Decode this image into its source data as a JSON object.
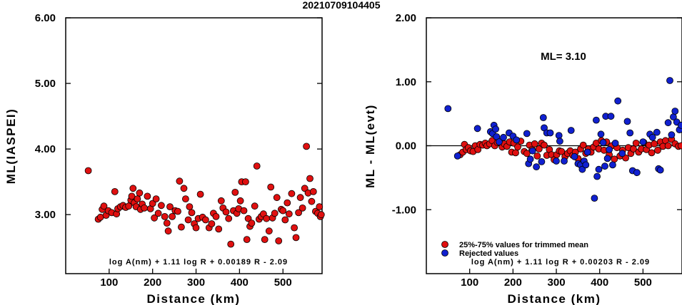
{
  "title": "20210709104405",
  "colors": {
    "used": "#e01010",
    "rejected": "#1020d0",
    "outline": "#000000"
  },
  "chart_data": [
    {
      "type": "scatter",
      "xlabel": "Distance (km)",
      "ylabel": "ML(IASPEI)",
      "xlim": [
        0,
        590
      ],
      "ylim": [
        2.1,
        6.0
      ],
      "xticks": [
        100,
        200,
        300,
        400,
        500
      ],
      "yticks": [
        3.0,
        4.0,
        5.0,
        6.0
      ],
      "ytick_labels": [
        "3.00",
        "4.00",
        "5.00",
        "6.00"
      ],
      "formula": "log A(nm) + 1.11 log R + 0.00189 R - 2.09",
      "series": [
        {
          "color": "#e01010",
          "points": [
            [
              52,
              3.67
            ],
            [
              75,
              2.93
            ],
            [
              80,
              2.96
            ],
            [
              84,
              3.08
            ],
            [
              88,
              3.13
            ],
            [
              93,
              2.99
            ],
            [
              98,
              3.06
            ],
            [
              106,
              3.03
            ],
            [
              113,
              3.35
            ],
            [
              117,
              3.01
            ],
            [
              120,
              3.09
            ],
            [
              126,
              3.12
            ],
            [
              132,
              3.14
            ],
            [
              138,
              3.11
            ],
            [
              145,
              3.13
            ],
            [
              150,
              3.22
            ],
            [
              152,
              3.28
            ],
            [
              155,
              3.4
            ],
            [
              158,
              3.18
            ],
            [
              162,
              3.12
            ],
            [
              165,
              3.24
            ],
            [
              170,
              3.33
            ],
            [
              172,
              3.08
            ],
            [
              176,
              3.16
            ],
            [
              181,
              3.1
            ],
            [
              188,
              3.28
            ],
            [
              195,
              3.09
            ],
            [
              200,
              3.17
            ],
            [
              204,
              2.95
            ],
            [
              208,
              3.24
            ],
            [
              213,
              3.02
            ],
            [
              220,
              3.14
            ],
            [
              228,
              2.97
            ],
            [
              233,
              2.87
            ],
            [
              236,
              2.75
            ],
            [
              240,
              3.12
            ],
            [
              245,
              2.97
            ],
            [
              252,
              3.06
            ],
            [
              258,
              3.05
            ],
            [
              262,
              3.51
            ],
            [
              266,
              2.81
            ],
            [
              272,
              3.4
            ],
            [
              276,
              3.24
            ],
            [
              282,
              2.92
            ],
            [
              285,
              3.12
            ],
            [
              290,
              3.03
            ],
            [
              296,
              2.86
            ],
            [
              300,
              2.8
            ],
            [
              305,
              2.94
            ],
            [
              310,
              3.31
            ],
            [
              315,
              2.96
            ],
            [
              322,
              2.92
            ],
            [
              330,
              2.8
            ],
            [
              336,
              2.86
            ],
            [
              340,
              3.02
            ],
            [
              346,
              2.97
            ],
            [
              352,
              2.78
            ],
            [
              358,
              3.21
            ],
            [
              362,
              3.1
            ],
            [
              369,
              3.04
            ],
            [
              375,
              2.94
            ],
            [
              380,
              2.55
            ],
            [
              386,
              3.06
            ],
            [
              390,
              3.34
            ],
            [
              394,
              3.02
            ],
            [
              398,
              3.09
            ],
            [
              402,
              3.21
            ],
            [
              405,
              3.5
            ],
            [
              410,
              3.06
            ],
            [
              414,
              3.5
            ],
            [
              417,
              2.62
            ],
            [
              420,
              2.94
            ],
            [
              424,
              2.82
            ],
            [
              428,
              2.87
            ],
            [
              435,
              3.13
            ],
            [
              440,
              3.74
            ],
            [
              445,
              2.93
            ],
            [
              450,
              2.97
            ],
            [
              455,
              3.01
            ],
            [
              458,
              2.62
            ],
            [
              462,
              2.94
            ],
            [
              468,
              2.75
            ],
            [
              472,
              3.42
            ],
            [
              476,
              2.95
            ],
            [
              481,
              3.02
            ],
            [
              486,
              3.26
            ],
            [
              490,
              2.6
            ],
            [
              496,
              3.08
            ],
            [
              500,
              3.06
            ],
            [
              505,
              2.92
            ],
            [
              510,
              3.18
            ],
            [
              514,
              3.01
            ],
            [
              520,
              3.32
            ],
            [
              526,
              2.8
            ],
            [
              530,
              2.65
            ],
            [
              536,
              3.03
            ],
            [
              540,
              3.26
            ],
            [
              545,
              3.1
            ],
            [
              550,
              3.4
            ],
            [
              554,
              4.04
            ],
            [
              558,
              3.33
            ],
            [
              562,
              3.55
            ],
            [
              566,
              3.2
            ],
            [
              570,
              3.35
            ],
            [
              575,
              3.05
            ],
            [
              580,
              3.02
            ],
            [
              584,
              3.12
            ],
            [
              586,
              2.97
            ],
            [
              588,
              3.0
            ]
          ]
        }
      ]
    },
    {
      "type": "scatter",
      "xlabel": "Distance (km)",
      "ylabel": "ML - ML(evt)",
      "xlim": [
        0,
        590
      ],
      "ylim": [
        -2.0,
        2.0
      ],
      "xticks": [
        100,
        200,
        300,
        400,
        500
      ],
      "yticks": [
        -1.0,
        0.0,
        1.0,
        2.0
      ],
      "ytick_labels": [
        "-1.00",
        "0.00",
        "1.00",
        "2.00"
      ],
      "reference_line": 0.0,
      "annotation": "ML= 3.10",
      "formula": "log A(nm) + 1.11 log R + 0.00203 R - 2.09",
      "legend": {
        "position": "bottom-left",
        "entries": [
          "25%-75% values for trimmed mean",
          "Rejected values"
        ]
      },
      "series": [
        {
          "name": "25%-75% values for trimmed mean",
          "color": "#e01010",
          "points": [
            [
              78,
              -0.14
            ],
            [
              84,
              -0.1
            ],
            [
              88,
              0.02
            ],
            [
              92,
              -0.06
            ],
            [
              97,
              -0.03
            ],
            [
              102,
              -0.08
            ],
            [
              108,
              -0.09
            ],
            [
              113,
              0.0
            ],
            [
              119,
              -0.06
            ],
            [
              124,
              0.02
            ],
            [
              130,
              0.01
            ],
            [
              136,
              0.04
            ],
            [
              140,
              0.0
            ],
            [
              146,
              0.03
            ],
            [
              152,
              0.08
            ],
            [
              158,
              0.0
            ],
            [
              164,
              0.05
            ],
            [
              170,
              0.06
            ],
            [
              175,
              -0.02
            ],
            [
              180,
              0.03
            ],
            [
              186,
              -0.01
            ],
            [
              192,
              0.06
            ],
            [
              197,
              -0.1
            ],
            [
              202,
              0.04
            ],
            [
              206,
              -0.11
            ],
            [
              211,
              -0.02
            ],
            [
              218,
              0.07
            ],
            [
              226,
              -0.09
            ],
            [
              232,
              -0.12
            ],
            [
              238,
              0.01
            ],
            [
              244,
              -0.06
            ],
            [
              250,
              0.03
            ],
            [
              256,
              -0.16
            ],
            [
              260,
              -0.05
            ],
            [
              266,
              0.04
            ],
            [
              272,
              0.01
            ],
            [
              278,
              -0.15
            ],
            [
              284,
              -0.06
            ],
            [
              289,
              -0.14
            ],
            [
              295,
              -0.22
            ],
            [
              301,
              -0.14
            ],
            [
              307,
              -0.08
            ],
            [
              312,
              -0.09
            ],
            [
              320,
              -0.17
            ],
            [
              326,
              -0.12
            ],
            [
              332,
              -0.08
            ],
            [
              338,
              -0.15
            ],
            [
              344,
              -0.1
            ],
            [
              350,
              -0.2
            ],
            [
              356,
              -0.05
            ],
            [
              362,
              0.01
            ],
            [
              368,
              -0.12
            ],
            [
              374,
              -0.05
            ],
            [
              380,
              -0.1
            ],
            [
              386,
              -0.02
            ],
            [
              392,
              0.04
            ],
            [
              398,
              -0.05
            ],
            [
              404,
              0.08
            ],
            [
              410,
              -0.07
            ],
            [
              416,
              0.06
            ],
            [
              422,
              -0.14
            ],
            [
              428,
              0.0
            ],
            [
              434,
              -0.21
            ],
            [
              440,
              -0.03
            ],
            [
              447,
              -0.16
            ],
            [
              453,
              -0.07
            ],
            [
              460,
              -0.19
            ],
            [
              466,
              -0.03
            ],
            [
              472,
              -0.12
            ],
            [
              478,
              -0.05
            ],
            [
              484,
              0.04
            ],
            [
              490,
              -0.1
            ],
            [
              496,
              -0.05
            ],
            [
              502,
              0.05
            ],
            [
              508,
              -0.06
            ],
            [
              514,
              0.01
            ],
            [
              520,
              -0.11
            ],
            [
              526,
              0.03
            ],
            [
              534,
              -0.07
            ],
            [
              540,
              0.06
            ],
            [
              546,
              -0.01
            ],
            [
              552,
              0.08
            ],
            [
              558,
              0.0
            ],
            [
              566,
              0.1
            ],
            [
              574,
              0.03
            ],
            [
              582,
              -0.01
            ],
            [
              588,
              0.0
            ]
          ]
        },
        {
          "name": "Rejected values",
          "color": "#1020d0",
          "points": [
            [
              50,
              0.58
            ],
            [
              72,
              -0.16
            ],
            [
              118,
              0.27
            ],
            [
              148,
              0.22
            ],
            [
              153,
              0.19
            ],
            [
              156,
              0.32
            ],
            [
              160,
              0.26
            ],
            [
              162,
              0.14
            ],
            [
              168,
              0.06
            ],
            [
              178,
              0.13
            ],
            [
              191,
              0.2
            ],
            [
              200,
              0.15
            ],
            [
              208,
              0.09
            ],
            [
              232,
              0.19
            ],
            [
              236,
              -0.28
            ],
            [
              240,
              -0.21
            ],
            [
              245,
              -0.08
            ],
            [
              254,
              -0.33
            ],
            [
              266,
              -0.25
            ],
            [
              270,
              0.44
            ],
            [
              272,
              0.28
            ],
            [
              278,
              0.2
            ],
            [
              286,
              0.2
            ],
            [
              300,
              -0.24
            ],
            [
              306,
              0.16
            ],
            [
              308,
              0.07
            ],
            [
              318,
              -0.24
            ],
            [
              334,
              0.24
            ],
            [
              342,
              -0.17
            ],
            [
              350,
              -0.28
            ],
            [
              356,
              -0.3
            ],
            [
              360,
              -0.37
            ],
            [
              364,
              -0.24
            ],
            [
              368,
              -0.3
            ],
            [
              372,
              -0.1
            ],
            [
              388,
              -0.82
            ],
            [
              392,
              0.4
            ],
            [
              394,
              -0.48
            ],
            [
              398,
              -0.37
            ],
            [
              403,
              0.18
            ],
            [
              408,
              0.05
            ],
            [
              412,
              -0.32
            ],
            [
              414,
              0.46
            ],
            [
              418,
              -0.2
            ],
            [
              422,
              -0.06
            ],
            [
              426,
              0.46
            ],
            [
              430,
              -0.3
            ],
            [
              436,
              0.04
            ],
            [
              442,
              0.7
            ],
            [
              452,
              -0.12
            ],
            [
              464,
              0.38
            ],
            [
              470,
              0.2
            ],
            [
              476,
              -0.39
            ],
            [
              486,
              -0.42
            ],
            [
              500,
              0.06
            ],
            [
              516,
              0.18
            ],
            [
              522,
              0.13
            ],
            [
              532,
              0.21
            ],
            [
              536,
              -0.36
            ],
            [
              540,
              -0.38
            ],
            [
              558,
              0.36
            ],
            [
              562,
              1.02
            ],
            [
              566,
              0.17
            ],
            [
              570,
              0.45
            ],
            [
              574,
              0.54
            ],
            [
              578,
              0.37
            ],
            [
              584,
              0.25
            ],
            [
              588,
              0.32
            ]
          ]
        }
      ]
    }
  ]
}
